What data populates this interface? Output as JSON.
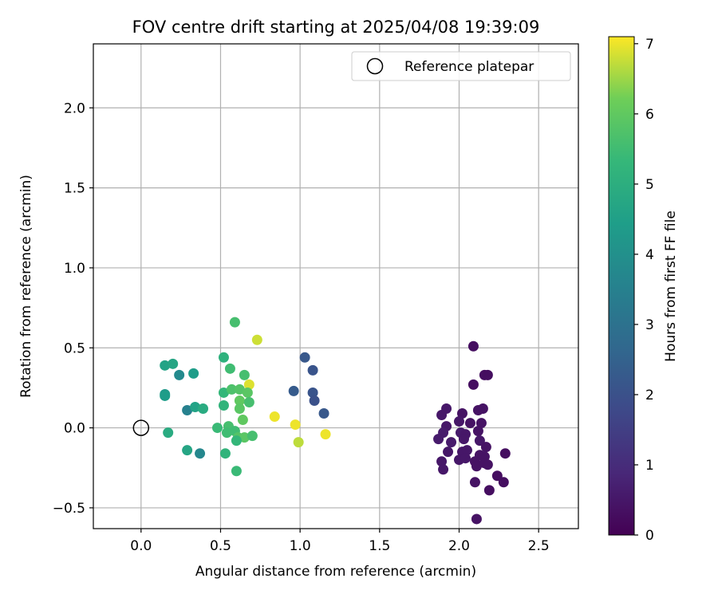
{
  "chart_data": {
    "type": "scatter",
    "title": "FOV centre drift starting at 2025/04/08 19:39:09",
    "xlabel": "Angular distance from reference (arcmin)",
    "ylabel": "Rotation from reference (arcmin)",
    "xlim": [
      -0.3,
      2.75
    ],
    "ylim": [
      -0.63,
      2.4
    ],
    "xticks": [
      0.0,
      0.5,
      1.0,
      1.5,
      2.0,
      2.5
    ],
    "xtick_labels": [
      "0.0",
      "0.5",
      "1.0",
      "1.5",
      "2.0",
      "2.5"
    ],
    "yticks": [
      -0.5,
      0.0,
      0.5,
      1.0,
      1.5,
      2.0
    ],
    "ytick_labels": [
      "−0.5",
      "0.0",
      "0.5",
      "1.0",
      "1.5",
      "2.0"
    ],
    "grid": true,
    "legend": {
      "position": "upper right",
      "entries": [
        "Reference platepar"
      ]
    },
    "reference_point": {
      "x": 0.0,
      "y": 0.0
    },
    "colorbar": {
      "label": "Hours from first FF file",
      "range": [
        0,
        7.1
      ],
      "ticks": [
        0,
        1,
        2,
        3,
        4,
        5,
        6,
        7
      ],
      "tick_labels": [
        "0",
        "1",
        "2",
        "3",
        "4",
        "5",
        "6",
        "7"
      ],
      "colormap": "viridis"
    },
    "points": [
      {
        "x": 2.09,
        "y": 0.51,
        "h": 0.3
      },
      {
        "x": 2.09,
        "y": 0.27,
        "h": 0.3
      },
      {
        "x": 2.16,
        "y": 0.33,
        "h": 0.3
      },
      {
        "x": 2.18,
        "y": 0.33,
        "h": 0.3
      },
      {
        "x": 1.92,
        "y": 0.12,
        "h": 0.5
      },
      {
        "x": 1.89,
        "y": 0.08,
        "h": 0.5
      },
      {
        "x": 2.02,
        "y": 0.09,
        "h": 0.4
      },
      {
        "x": 2.12,
        "y": 0.11,
        "h": 0.4
      },
      {
        "x": 2.15,
        "y": 0.12,
        "h": 0.4
      },
      {
        "x": 1.92,
        "y": 0.01,
        "h": 0.5
      },
      {
        "x": 2.0,
        "y": 0.04,
        "h": 0.5
      },
      {
        "x": 2.07,
        "y": 0.03,
        "h": 0.4
      },
      {
        "x": 2.14,
        "y": 0.03,
        "h": 0.4
      },
      {
        "x": 1.9,
        "y": -0.03,
        "h": 0.6
      },
      {
        "x": 2.01,
        "y": -0.03,
        "h": 0.6
      },
      {
        "x": 2.04,
        "y": -0.04,
        "h": 0.5
      },
      {
        "x": 2.12,
        "y": -0.02,
        "h": 0.4
      },
      {
        "x": 1.87,
        "y": -0.07,
        "h": 0.6
      },
      {
        "x": 1.95,
        "y": -0.09,
        "h": 0.6
      },
      {
        "x": 2.03,
        "y": -0.07,
        "h": 0.5
      },
      {
        "x": 2.13,
        "y": -0.08,
        "h": 0.5
      },
      {
        "x": 2.17,
        "y": -0.12,
        "h": 0.4
      },
      {
        "x": 1.93,
        "y": -0.15,
        "h": 0.5
      },
      {
        "x": 2.02,
        "y": -0.15,
        "h": 0.5
      },
      {
        "x": 2.05,
        "y": -0.14,
        "h": 0.5
      },
      {
        "x": 2.13,
        "y": -0.17,
        "h": 0.4
      },
      {
        "x": 2.16,
        "y": -0.18,
        "h": 0.4
      },
      {
        "x": 2.29,
        "y": -0.16,
        "h": 0.3
      },
      {
        "x": 1.89,
        "y": -0.21,
        "h": 0.5
      },
      {
        "x": 2.0,
        "y": -0.2,
        "h": 0.5
      },
      {
        "x": 2.04,
        "y": -0.19,
        "h": 0.5
      },
      {
        "x": 2.1,
        "y": -0.21,
        "h": 0.4
      },
      {
        "x": 2.11,
        "y": -0.24,
        "h": 0.4
      },
      {
        "x": 2.16,
        "y": -0.22,
        "h": 0.4
      },
      {
        "x": 2.18,
        "y": -0.23,
        "h": 0.4
      },
      {
        "x": 1.9,
        "y": -0.26,
        "h": 0.5
      },
      {
        "x": 2.24,
        "y": -0.3,
        "h": 0.3
      },
      {
        "x": 2.28,
        "y": -0.34,
        "h": 0.3
      },
      {
        "x": 2.1,
        "y": -0.34,
        "h": 0.4
      },
      {
        "x": 2.19,
        "y": -0.39,
        "h": 0.3
      },
      {
        "x": 2.11,
        "y": -0.57,
        "h": 0.4
      },
      {
        "x": 1.03,
        "y": 0.44,
        "h": 2.2
      },
      {
        "x": 1.08,
        "y": 0.36,
        "h": 2.1
      },
      {
        "x": 0.96,
        "y": 0.23,
        "h": 2.3
      },
      {
        "x": 1.08,
        "y": 0.22,
        "h": 2.1
      },
      {
        "x": 1.09,
        "y": 0.17,
        "h": 2.0
      },
      {
        "x": 1.15,
        "y": 0.09,
        "h": 2.2
      },
      {
        "x": 0.15,
        "y": 0.39,
        "h": 4.6
      },
      {
        "x": 0.2,
        "y": 0.4,
        "h": 4.7
      },
      {
        "x": 0.24,
        "y": 0.33,
        "h": 3.8
      },
      {
        "x": 0.33,
        "y": 0.34,
        "h": 4.4
      },
      {
        "x": 0.15,
        "y": 0.21,
        "h": 4.3
      },
      {
        "x": 0.15,
        "y": 0.2,
        "h": 4.4
      },
      {
        "x": 0.29,
        "y": 0.11,
        "h": 3.5
      },
      {
        "x": 0.34,
        "y": 0.13,
        "h": 4.6
      },
      {
        "x": 0.39,
        "y": 0.12,
        "h": 4.9
      },
      {
        "x": 0.17,
        "y": -0.03,
        "h": 4.9
      },
      {
        "x": 0.29,
        "y": -0.14,
        "h": 4.7
      },
      {
        "x": 0.37,
        "y": -0.16,
        "h": 3.7
      },
      {
        "x": 0.59,
        "y": 0.66,
        "h": 5.6
      },
      {
        "x": 0.73,
        "y": 0.55,
        "h": 6.8
      },
      {
        "x": 0.52,
        "y": 0.44,
        "h": 5.1
      },
      {
        "x": 0.56,
        "y": 0.37,
        "h": 5.5
      },
      {
        "x": 0.65,
        "y": 0.33,
        "h": 5.6
      },
      {
        "x": 0.68,
        "y": 0.27,
        "h": 6.9
      },
      {
        "x": 0.52,
        "y": 0.22,
        "h": 5.3
      },
      {
        "x": 0.57,
        "y": 0.24,
        "h": 5.7
      },
      {
        "x": 0.62,
        "y": 0.24,
        "h": 5.8
      },
      {
        "x": 0.67,
        "y": 0.22,
        "h": 5.9
      },
      {
        "x": 0.62,
        "y": 0.17,
        "h": 6.0
      },
      {
        "x": 0.68,
        "y": 0.16,
        "h": 5.6
      },
      {
        "x": 0.52,
        "y": 0.14,
        "h": 5.2
      },
      {
        "x": 0.62,
        "y": 0.12,
        "h": 5.9
      },
      {
        "x": 0.64,
        "y": 0.05,
        "h": 6.0
      },
      {
        "x": 0.48,
        "y": 0.0,
        "h": 5.4
      },
      {
        "x": 0.55,
        "y": 0.01,
        "h": 5.6
      },
      {
        "x": 0.59,
        "y": -0.02,
        "h": 5.5
      },
      {
        "x": 0.54,
        "y": -0.03,
        "h": 5.5
      },
      {
        "x": 0.61,
        "y": -0.06,
        "h": 5.8
      },
      {
        "x": 0.65,
        "y": -0.06,
        "h": 5.9
      },
      {
        "x": 0.7,
        "y": -0.05,
        "h": 5.6
      },
      {
        "x": 0.6,
        "y": -0.08,
        "h": 5.3
      },
      {
        "x": 0.53,
        "y": -0.16,
        "h": 5.2
      },
      {
        "x": 0.6,
        "y": -0.27,
        "h": 5.4
      },
      {
        "x": 0.84,
        "y": 0.07,
        "h": 7.0
      },
      {
        "x": 0.97,
        "y": 0.02,
        "h": 7.0
      },
      {
        "x": 0.99,
        "y": -0.09,
        "h": 6.7
      },
      {
        "x": 1.16,
        "y": -0.04,
        "h": 7.0
      }
    ]
  }
}
